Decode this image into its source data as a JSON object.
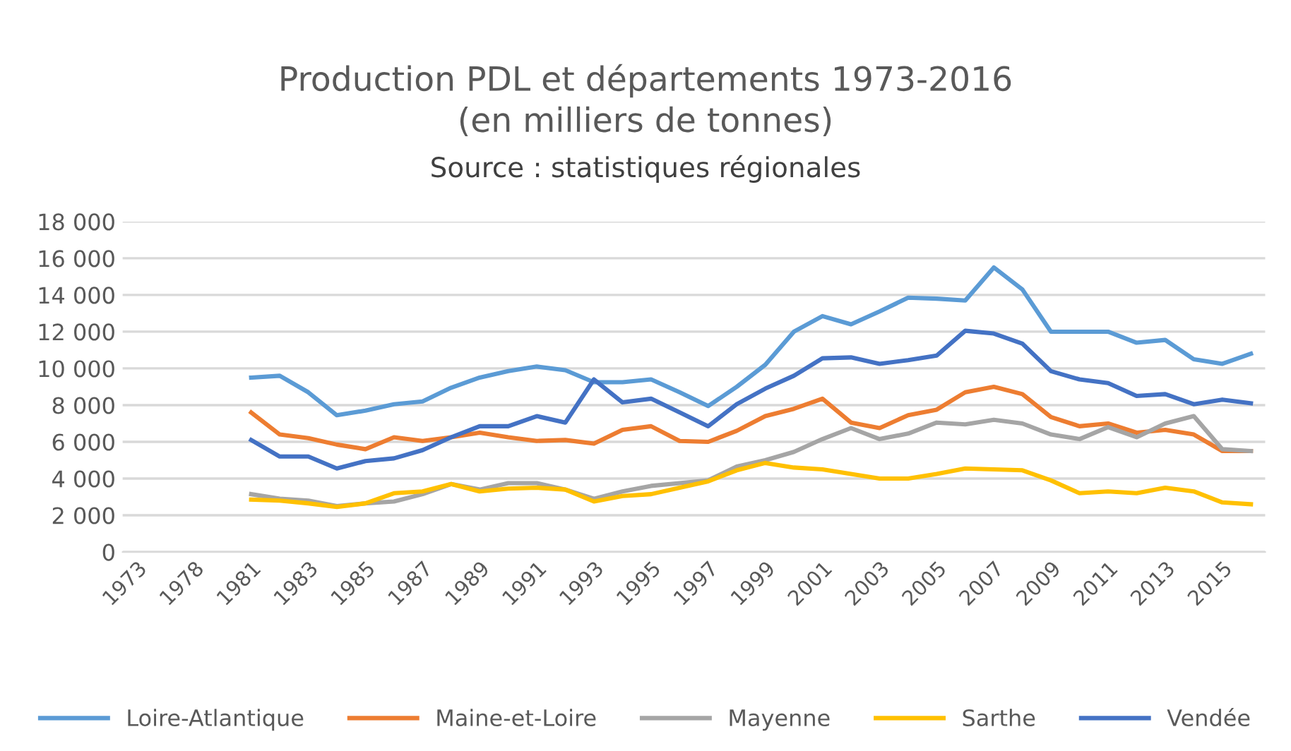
{
  "chart_data": {
    "type": "line",
    "title": "Production PDL et départements 1973-2016\n(en milliers de tonnes)",
    "subtitle": "Source : statistiques régionales",
    "categories": [
      "1973",
      null,
      "1978",
      null,
      "1981",
      null,
      "1983",
      null,
      "1985",
      null,
      "1987",
      null,
      "1989",
      null,
      "1991",
      null,
      "1993",
      null,
      "1995",
      null,
      "1997",
      null,
      "1999",
      null,
      "2001",
      null,
      "2003",
      null,
      "2005",
      null,
      "2007",
      null,
      "2009",
      null,
      "2011",
      null,
      "2013",
      null,
      "2015",
      null
    ],
    "series": [
      {
        "name": "Loire-Atlantique",
        "color": "#5b9bd5",
        "values": [
          null,
          null,
          null,
          null,
          9500,
          9600,
          8700,
          7450,
          7700,
          8050,
          8200,
          8950,
          9500,
          9850,
          10100,
          9900,
          9250,
          9250,
          9400,
          8700,
          7950,
          9000,
          10200,
          12000,
          12850,
          12400,
          13100,
          13850,
          13800,
          13700,
          15500,
          14300,
          12000,
          12000,
          12000,
          11400,
          11550,
          10500,
          10250,
          10800
        ]
      },
      {
        "name": "Maine-et-Loire",
        "color": "#ed7d31",
        "values": [
          null,
          null,
          null,
          null,
          7600,
          6400,
          6200,
          5850,
          5600,
          6250,
          6050,
          6250,
          6500,
          6250,
          6050,
          6100,
          5900,
          6650,
          6850,
          6050,
          6000,
          6600,
          7400,
          7800,
          8350,
          7050,
          6750,
          7450,
          7750,
          8700,
          9000,
          8600,
          7350,
          6850,
          7000,
          6500,
          6650,
          6400,
          5500,
          5500
        ]
      },
      {
        "name": "Mayenne",
        "color": "#a5a5a5",
        "values": [
          null,
          null,
          null,
          null,
          3150,
          2900,
          2800,
          2500,
          2650,
          2750,
          3150,
          3700,
          3400,
          3750,
          3750,
          3400,
          2900,
          3300,
          3600,
          3750,
          3900,
          4650,
          5000,
          5450,
          6150,
          6750,
          6150,
          6450,
          7050,
          6950,
          7200,
          7000,
          6400,
          6150,
          6800,
          6250,
          7000,
          7400,
          5600,
          5500
        ]
      },
      {
        "name": "Sarthe",
        "color": "#ffc000",
        "values": [
          null,
          null,
          null,
          null,
          2850,
          2800,
          2650,
          2450,
          2650,
          3200,
          3300,
          3700,
          3300,
          3450,
          3500,
          3400,
          2750,
          3050,
          3150,
          3500,
          3850,
          4450,
          4850,
          4600,
          4500,
          4250,
          4000,
          4000,
          4250,
          4550,
          4500,
          4450,
          3900,
          3200,
          3300,
          3200,
          3500,
          3300,
          2700,
          2600
        ]
      },
      {
        "name": "Vendée",
        "color": "#4472c4",
        "values": [
          null,
          null,
          null,
          null,
          6100,
          5200,
          5200,
          4550,
          4950,
          5100,
          5550,
          6250,
          6850,
          6850,
          7400,
          7050,
          9400,
          8150,
          8350,
          7600,
          6850,
          8050,
          8900,
          9600,
          10550,
          10600,
          10250,
          10450,
          10700,
          12050,
          11900,
          11350,
          9850,
          9400,
          9200,
          8500,
          8600,
          8050,
          8300,
          8100
        ]
      }
    ],
    "ylim": [
      0,
      18000
    ],
    "yticks": [
      0,
      {
        "value": 2000,
        "label": "2 000"
      },
      {
        "value": 4000,
        "label": "4 000"
      },
      {
        "value": 6000,
        "label": "6 000"
      },
      {
        "value": 8000,
        "label": "8 000"
      },
      {
        "value": 10000,
        "label": "10 000"
      },
      {
        "value": 12000,
        "label": "12 000"
      },
      {
        "value": 14000,
        "label": "14 000"
      },
      {
        "value": 16000,
        "label": "16 000"
      },
      {
        "value": 18000,
        "label": "18 000"
      }
    ],
    "grid": "y",
    "legend": "bottom",
    "line_style": "solid"
  }
}
